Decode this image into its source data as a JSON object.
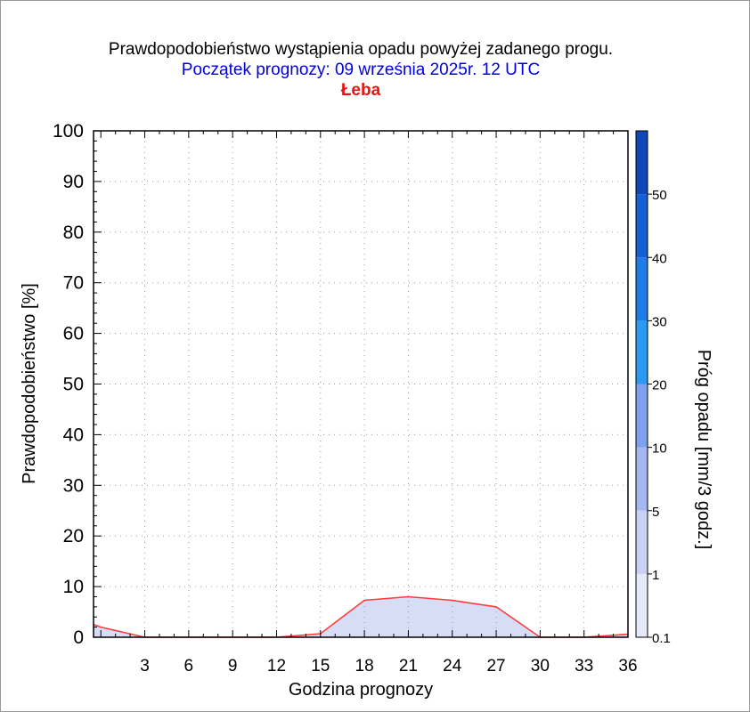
{
  "header": {
    "title": "Prawdopodobieństwo wystąpienia opadu powyżej zadanego progu.",
    "subtitle": "Początek prognozy: 09 września 2025r. 12 UTC",
    "location": "Łeba"
  },
  "colors": {
    "title": "#000000",
    "subtitle": "#0000dd",
    "location": "#ee1111",
    "series_line": "#ff3b3b",
    "series_fill": "#d8ddf6",
    "grid": "#9a9a9a"
  },
  "chart_data": {
    "type": "area",
    "xlabel": "Godzina prognozy",
    "ylabel": "Prawdopodobieństwo [%]",
    "xlim": [
      -0.5,
      36
    ],
    "ylim": [
      0,
      100
    ],
    "x_ticks": [
      3,
      6,
      9,
      12,
      15,
      18,
      21,
      24,
      27,
      30,
      33,
      36
    ],
    "y_ticks": [
      0,
      10,
      20,
      30,
      40,
      50,
      60,
      70,
      80,
      90,
      100
    ],
    "grid": true,
    "series": [
      {
        "x": [
          -0.5,
          0,
          3,
          6,
          9,
          12,
          15,
          18,
          21,
          24,
          27,
          30,
          33,
          36
        ],
        "values": [
          2.5,
          2,
          0,
          0,
          0,
          0,
          0.7,
          7.3,
          8,
          7.3,
          6,
          0,
          0,
          0.6
        ]
      }
    ],
    "colorbar": {
      "label": "Próg opadu [mm/3 godz.]",
      "tick_labels": [
        "0.1",
        "1",
        "5",
        "10",
        "20",
        "30",
        "40",
        "50"
      ],
      "colors": [
        "#e6e9f8",
        "#c9d1f5",
        "#a5b8f2",
        "#7ea2f0",
        "#2a9af5",
        "#1d7ce8",
        "#1560d6",
        "#0e47b8"
      ]
    }
  }
}
